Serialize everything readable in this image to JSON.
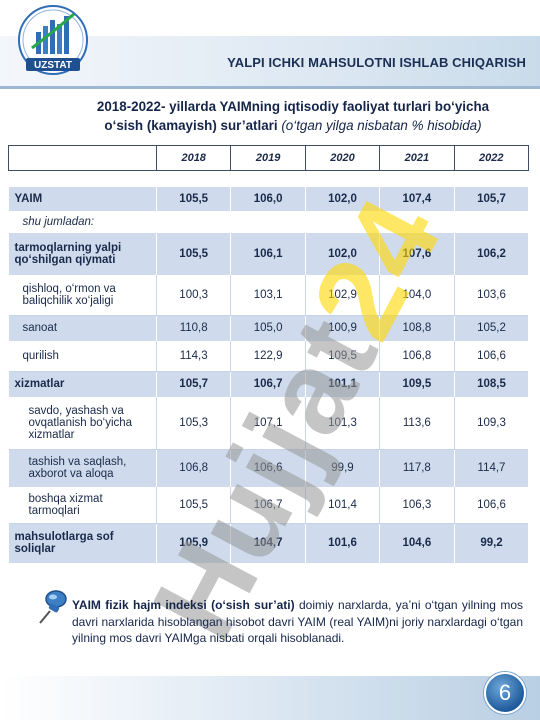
{
  "header": {
    "logo_text": "UZSTAT",
    "title": "YALPI ICHKI MAHSULOTNI ISHLAB CHIQARISH"
  },
  "subtitle": {
    "line1": "2018-2022- yillarda YAIMning iqtisodiy faoliyat turlari bo‘yicha",
    "line2_bold": "o‘sish (kamayish) sur’atlari",
    "line2_note": "(o‘tgan yilga nisbatan % hisobida)"
  },
  "table": {
    "years": [
      "2018",
      "2019",
      "2020",
      "2021",
      "2022"
    ],
    "rows": [
      {
        "label": "YAIM",
        "values": [
          "105,5",
          "106,0",
          "102,0",
          "107,4",
          "105,7"
        ]
      },
      {
        "label": "shu jumladan:"
      },
      {
        "label": "tarmoqlarning yalpi qo‘shilgan qiymati",
        "values": [
          "105,5",
          "106,1",
          "102,0",
          "107,6",
          "106,2"
        ]
      },
      {
        "label": "qishloq, o‘rmon va baliqchilik xo‘jaligi",
        "values": [
          "100,3",
          "103,1",
          "102,9",
          "104,0",
          "103,6"
        ]
      },
      {
        "label": "sanoat",
        "values": [
          "110,8",
          "105,0",
          "100,9",
          "108,8",
          "105,2"
        ]
      },
      {
        "label": "qurilish",
        "values": [
          "114,3",
          "122,9",
          "109,5",
          "106,8",
          "106,6"
        ]
      },
      {
        "label": "xizmatlar",
        "values": [
          "105,7",
          "106,7",
          "101,1",
          "109,5",
          "108,5"
        ]
      },
      {
        "label": "savdo, yashash va ovqatlanish bo‘yicha xizmatlar",
        "values": [
          "105,3",
          "107,1",
          "101,3",
          "113,6",
          "109,3"
        ]
      },
      {
        "label": "tashish va saqlash, axborot va aloqa",
        "values": [
          "106,8",
          "106,6",
          "99,9",
          "117,8",
          "114,7"
        ]
      },
      {
        "label": "boshqa xizmat tarmoqlari",
        "values": [
          "105,5",
          "106,7",
          "101,4",
          "106,3",
          "106,6"
        ]
      },
      {
        "label": "mahsulotlarga sof soliqlar",
        "values": [
          "105,9",
          "104,7",
          "101,6",
          "104,6",
          "99,2"
        ]
      }
    ]
  },
  "watermark": {
    "text_a": "Hujjat",
    "text_b": "24"
  },
  "footnote": {
    "bold": "YAIM fizik hajm indeksi (o‘sish sur’ati)",
    "text": " doimiy narxlarda, ya’ni o‘tgan yilning mos davri narxlarida hisoblangan hisobot davri YAIM (real YAIM)ni joriy narxlardagi o‘tgan yilning mos davri YAIMga nisbati orqali hisoblanadi."
  },
  "page_number": "6",
  "colors": {
    "accent": "#1f5b9c",
    "row_band": "#cfdbec",
    "text": "#15254a"
  }
}
